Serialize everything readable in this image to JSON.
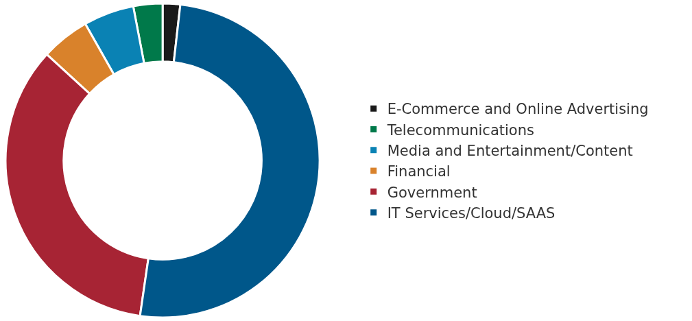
{
  "chart_data": {
    "type": "donut",
    "categories": [
      "E-Commerce and Online Advertising",
      "Telecommunications",
      "Media and Entertainment/Content",
      "Financial",
      "Government",
      "IT Services/Cloud/SAAS"
    ],
    "values": [
      1.8,
      3,
      5.2,
      5,
      34.5,
      50.5
    ],
    "colors": [
      "#1a1a1a",
      "#00794a",
      "#0a82b4",
      "#d9822b",
      "#a72434",
      "#00578a"
    ],
    "legend": "right"
  }
}
